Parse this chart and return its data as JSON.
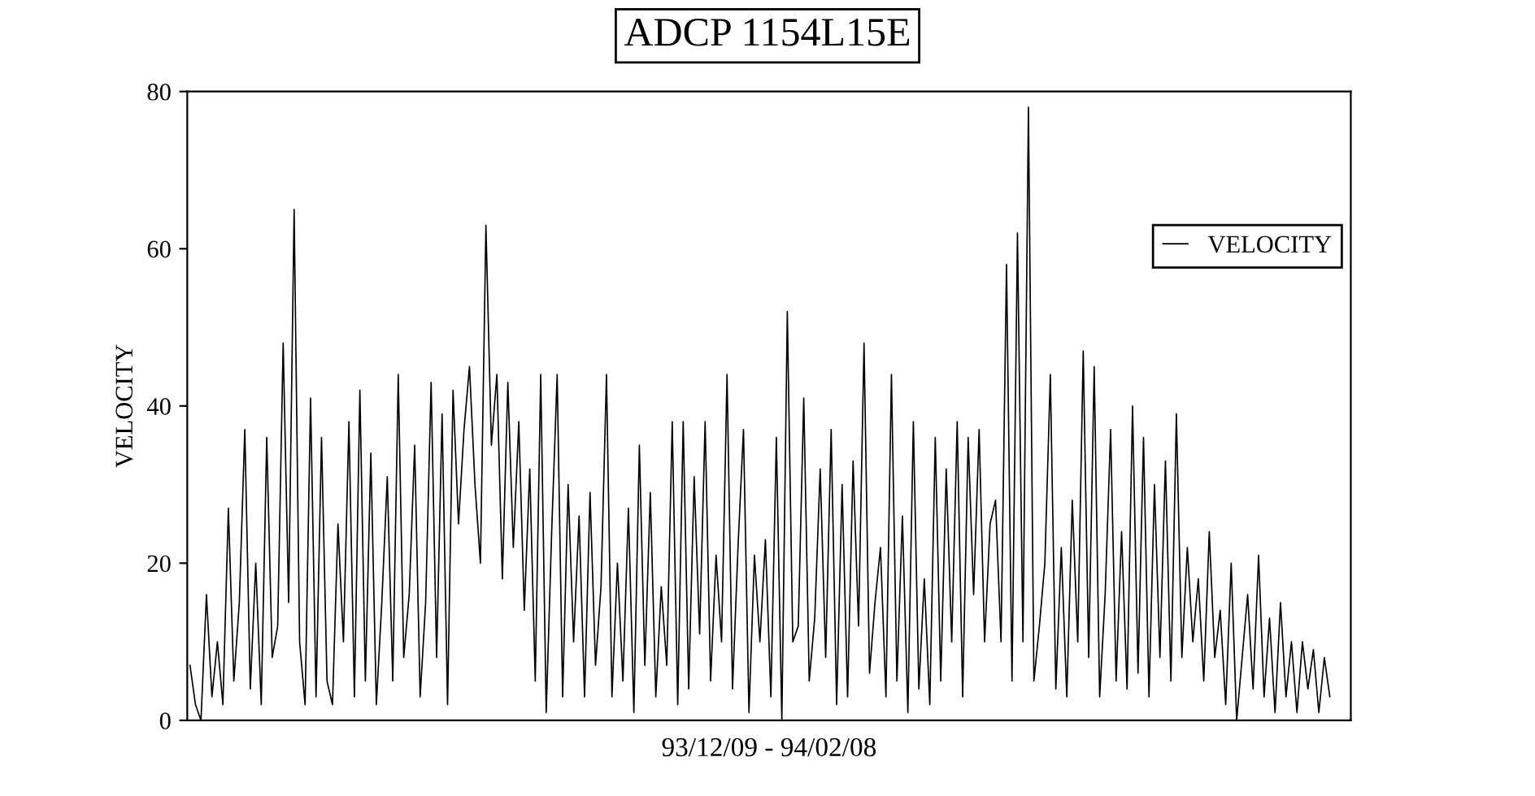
{
  "chart_data": {
    "type": "line",
    "title": "ADCP 1154L15E",
    "xlabel": "93/12/09 - 94/02/08",
    "ylabel": "VELOCITY",
    "categories": [
      null,
      null,
      null,
      null,
      null,
      null,
      null,
      null,
      null,
      null,
      null,
      null,
      null,
      null,
      null,
      null,
      null,
      null,
      null,
      null,
      null,
      null,
      null,
      null,
      null,
      null,
      null,
      null,
      null,
      null,
      null,
      null,
      null,
      null,
      null,
      null,
      null,
      null,
      null,
      null,
      null,
      null,
      null,
      null,
      null,
      null,
      null,
      null,
      null,
      null,
      null,
      null,
      null,
      null,
      null,
      null,
      null,
      null,
      null,
      null,
      null,
      null,
      null,
      null,
      null,
      null,
      null,
      null,
      null,
      null,
      null,
      null,
      null,
      null,
      null,
      null,
      null,
      null,
      null,
      null,
      null,
      null,
      null,
      null,
      null,
      null,
      null,
      null,
      null,
      null,
      null,
      null,
      null,
      null,
      null,
      null,
      null,
      null,
      null,
      null,
      null,
      null,
      null,
      null,
      null,
      null,
      null,
      null,
      null,
      null,
      null,
      null,
      null,
      null,
      null,
      null,
      null,
      null,
      null,
      null,
      null,
      null,
      null,
      null,
      null,
      null,
      null,
      null,
      null,
      null,
      null,
      null,
      null,
      null,
      null,
      null,
      null,
      null,
      null,
      null,
      null,
      null,
      null,
      null,
      null,
      null,
      null,
      null,
      null,
      null,
      null,
      null,
      null,
      null,
      null,
      null,
      null,
      null,
      null,
      null,
      null,
      null,
      null,
      null,
      null,
      null,
      null,
      null,
      null,
      null,
      null,
      null,
      null,
      null,
      null,
      null,
      null,
      null,
      null,
      null,
      null,
      null,
      null,
      null,
      null,
      null,
      null,
      null,
      null,
      null,
      null,
      null,
      null,
      null,
      null,
      null,
      null,
      null,
      null,
      null,
      null,
      null,
      null,
      null,
      null,
      null,
      null,
      null,
      null
    ],
    "series": [
      {
        "name": "VELOCITY",
        "color": "#000000",
        "values": [
          7,
          2,
          0,
          16,
          3,
          10,
          2,
          27,
          5,
          15,
          37,
          4,
          20,
          2,
          36,
          8,
          12,
          48,
          15,
          65,
          10,
          2,
          41,
          3,
          36,
          5,
          2,
          25,
          10,
          38,
          3,
          42,
          5,
          34,
          2,
          15,
          31,
          5,
          44,
          8,
          16,
          35,
          3,
          15,
          43,
          8,
          39,
          2,
          42,
          25,
          37,
          45,
          30,
          20,
          63,
          35,
          44,
          18,
          43,
          22,
          38,
          14,
          32,
          5,
          44,
          1,
          24,
          44,
          3,
          30,
          10,
          26,
          3,
          29,
          7,
          17,
          44,
          3,
          20,
          5,
          27,
          1,
          35,
          7,
          29,
          3,
          17,
          7,
          38,
          2,
          38,
          4,
          31,
          11,
          38,
          5,
          21,
          10,
          44,
          4,
          22,
          37,
          1,
          21,
          10,
          23,
          3,
          36,
          0,
          52,
          10,
          12,
          41,
          5,
          13,
          32,
          8,
          37,
          2,
          30,
          3,
          33,
          12,
          48,
          6,
          15,
          22,
          3,
          44,
          5,
          26,
          1,
          38,
          4,
          18,
          2,
          36,
          5,
          32,
          10,
          38,
          3,
          36,
          16,
          37,
          10,
          25,
          28,
          10,
          58,
          5,
          62,
          10,
          78,
          5,
          12,
          20,
          44,
          4,
          22,
          3,
          28,
          10,
          47,
          8,
          45,
          3,
          16,
          37,
          5,
          24,
          4,
          40,
          6,
          36,
          3,
          30,
          8,
          33,
          5,
          39,
          8,
          22,
          10,
          18,
          5,
          24,
          8,
          14,
          2,
          20,
          0,
          8,
          16,
          4,
          21,
          3,
          13,
          1,
          15,
          3,
          10,
          1,
          10,
          4,
          9,
          1,
          8,
          3
        ]
      }
    ],
    "ylim": [
      0,
      80
    ],
    "yticks": [
      0,
      20,
      40,
      60,
      80
    ],
    "grid": false,
    "legend": "top right",
    "marker": "none",
    "line_style": "solid"
  }
}
